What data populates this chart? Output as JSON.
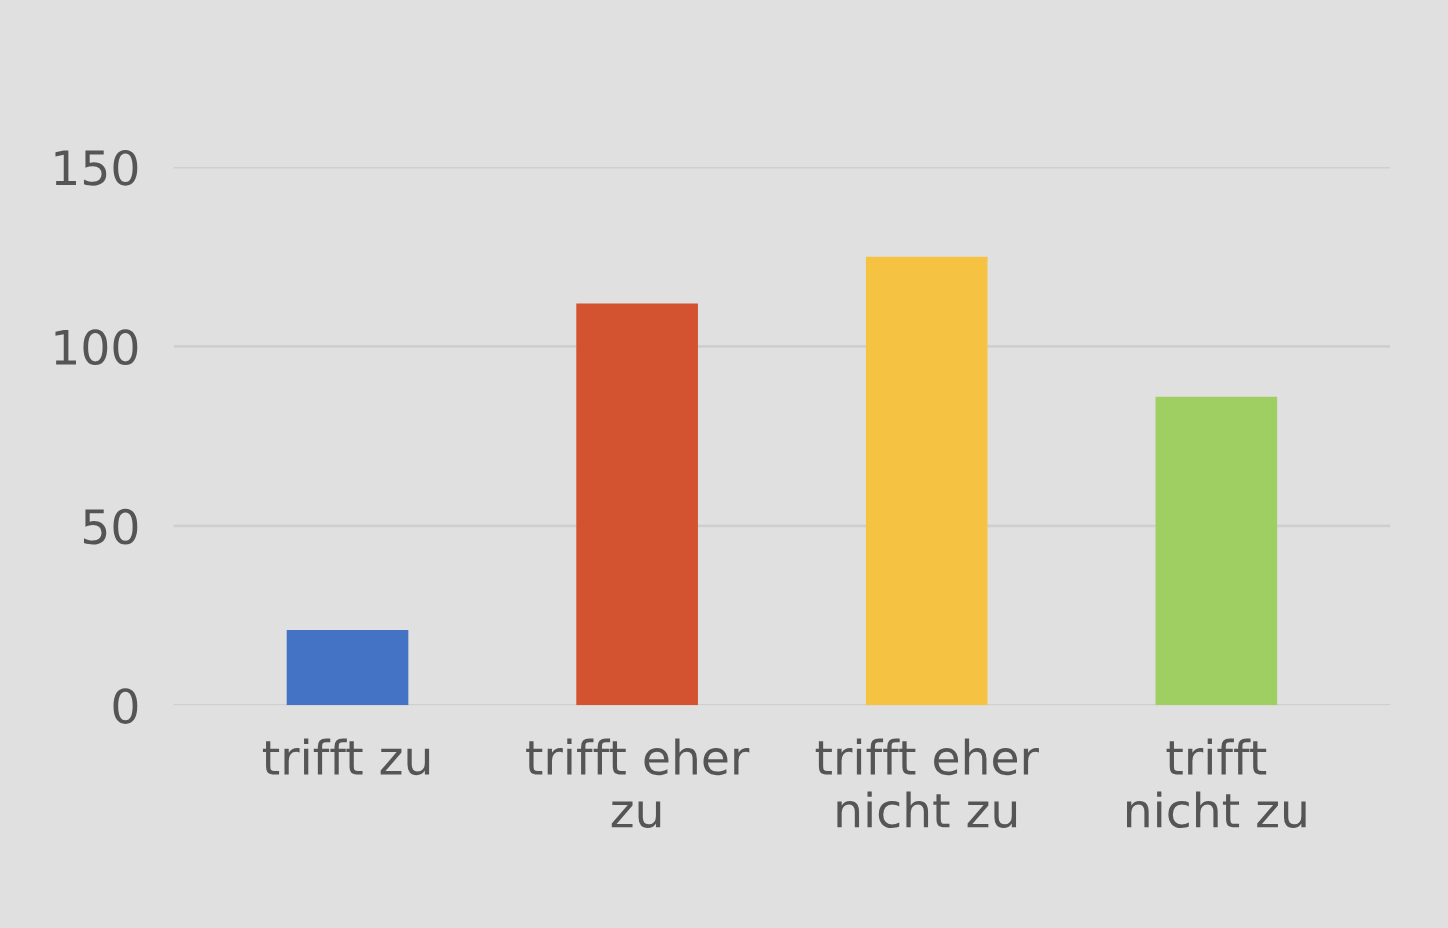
{
  "chart_data": {
    "type": "bar",
    "categories": [
      "trifft zu",
      "trifft eher\nzu",
      "trifft eher\nnicht zu",
      "trifft\nnicht zu"
    ],
    "values": [
      21,
      112,
      125,
      86
    ],
    "colors": [
      "#4472c4",
      "#d35230",
      "#f5c242",
      "#9fcf62"
    ],
    "ylim": [
      0,
      150
    ],
    "yticks": [
      0,
      50,
      100,
      150
    ],
    "grid": "y",
    "legend": false
  }
}
